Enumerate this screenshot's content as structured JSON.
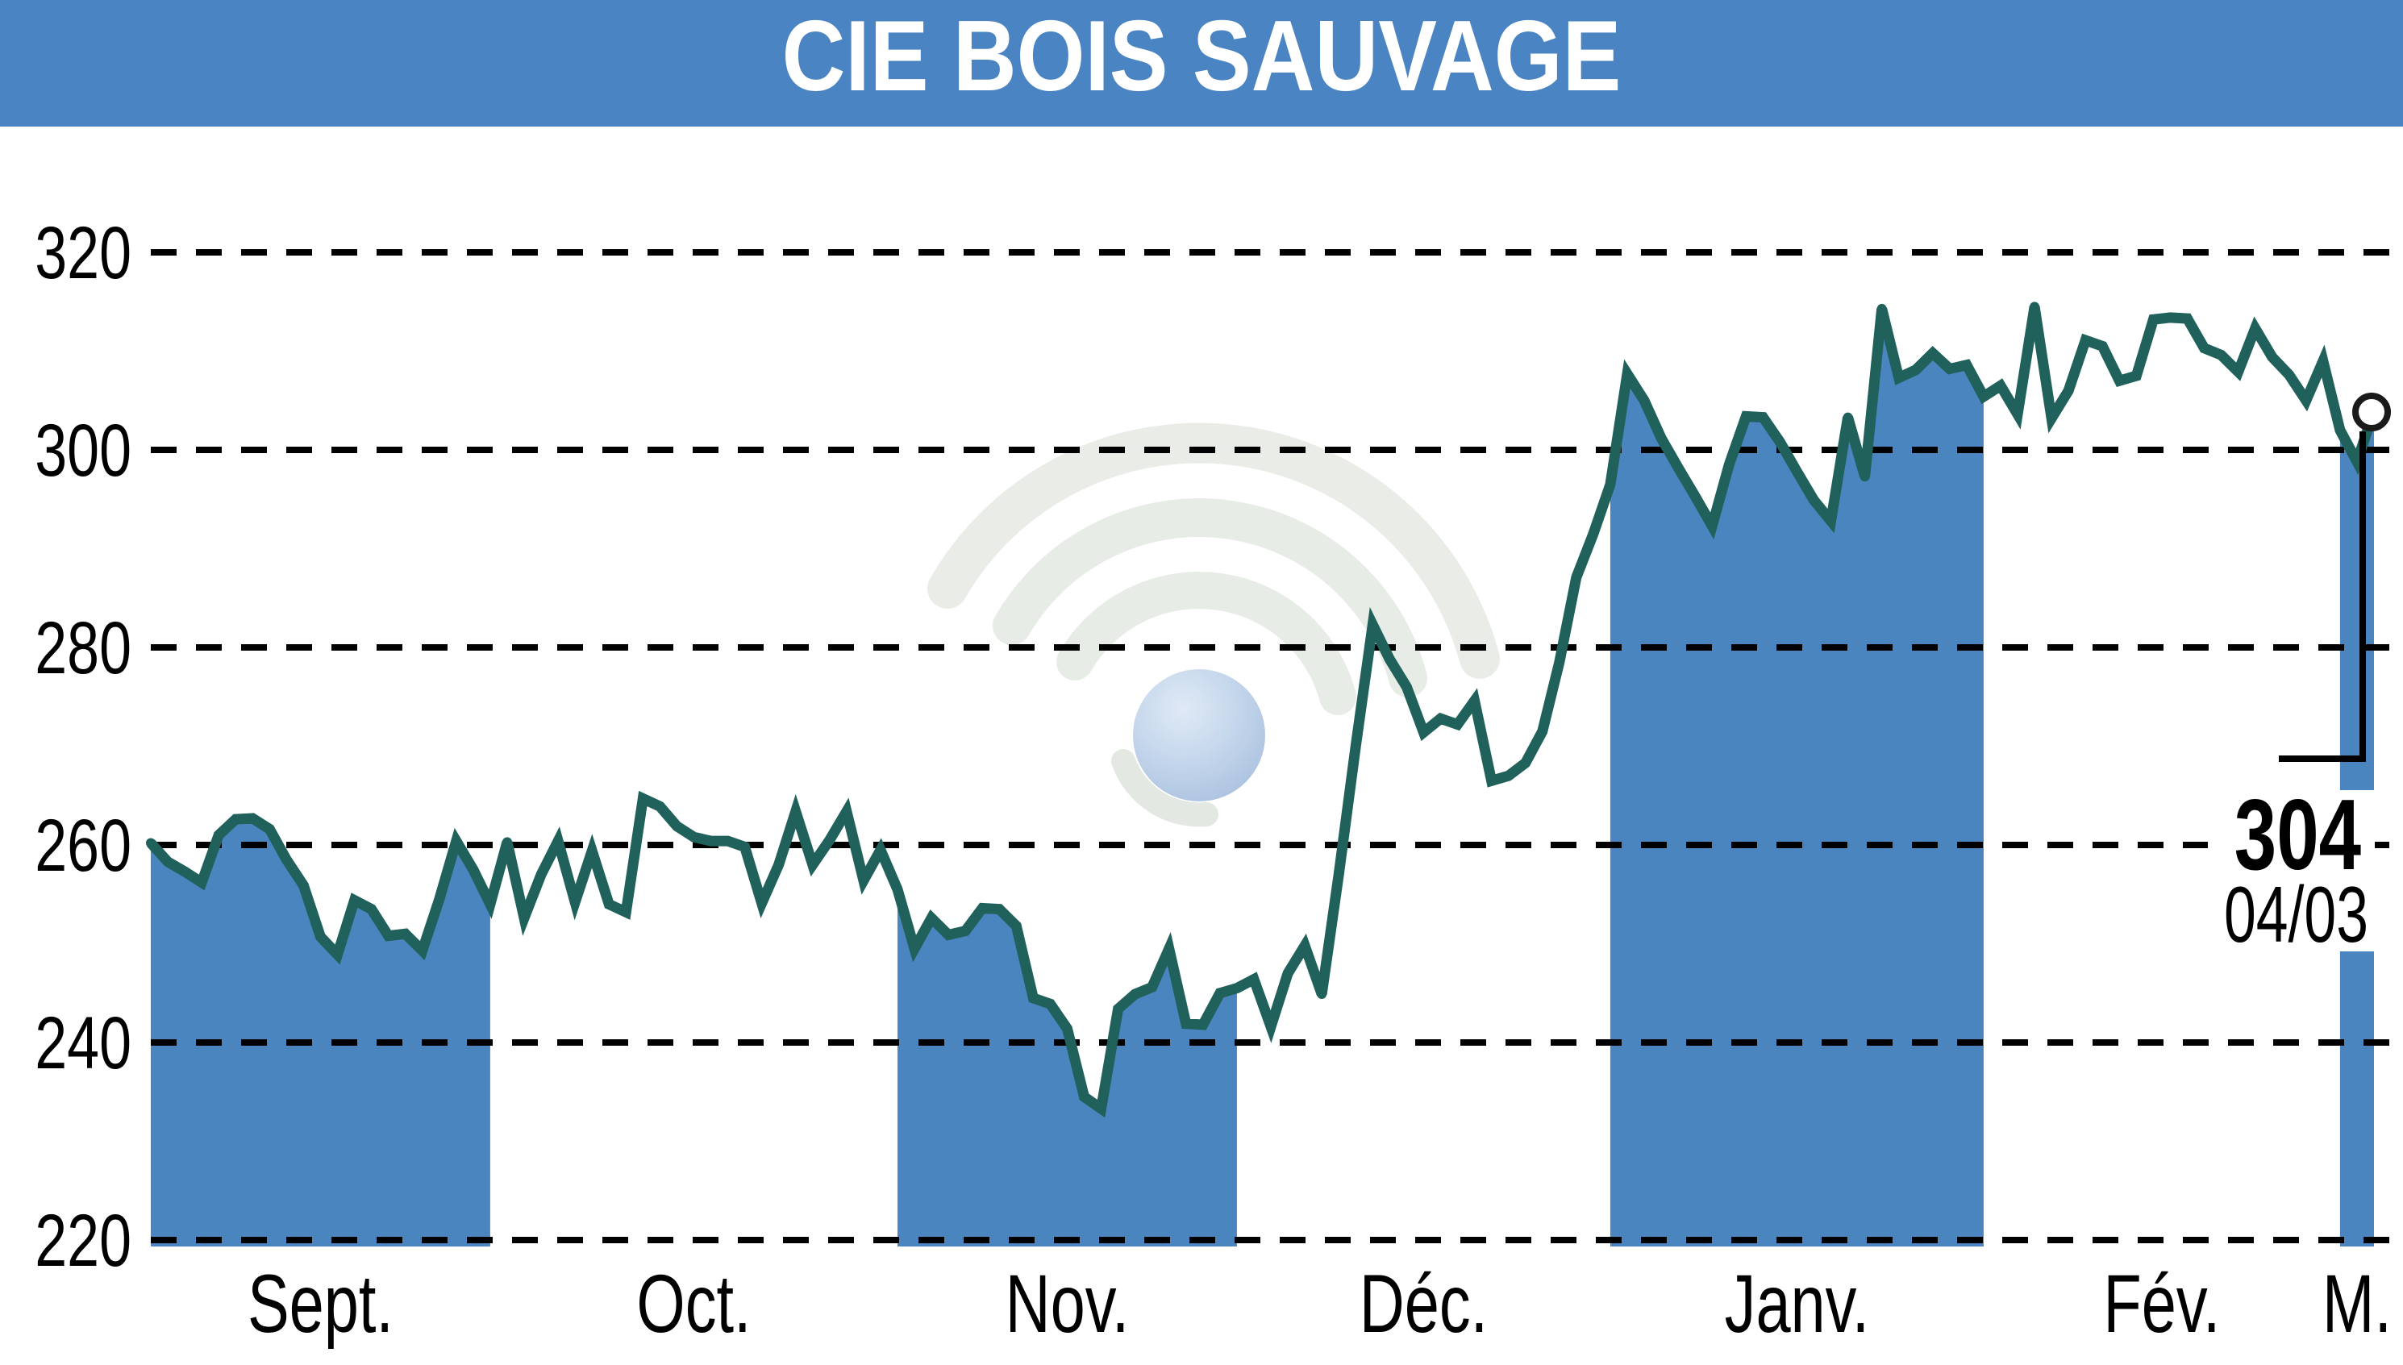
{
  "header": {
    "title": "CIE BOIS SAUVAGE",
    "bg_color": "#4a84c3"
  },
  "chart_data": {
    "type": "line",
    "title": "CIE BOIS SAUVAGE",
    "ylabel": "",
    "xlabel": "",
    "ylim": [
      220,
      320
    ],
    "yticks": [
      320,
      300,
      280,
      260,
      240,
      220
    ],
    "grid": "dashed-horizontal",
    "months": [
      {
        "label": "Sept.",
        "start_day": 0,
        "end_day": 20,
        "shaded": true
      },
      {
        "label": "Oct.",
        "start_day": 20,
        "end_day": 44,
        "shaded": false
      },
      {
        "label": "Nov.",
        "start_day": 44,
        "end_day": 64,
        "shaded": true
      },
      {
        "label": "Déc.",
        "start_day": 64,
        "end_day": 86,
        "shaded": false
      },
      {
        "label": "Janv.",
        "start_day": 86,
        "end_day": 108,
        "shaded": true
      },
      {
        "label": "Fév.",
        "start_day": 108,
        "end_day": 129,
        "shaded": false
      },
      {
        "label": "M.",
        "start_day": 129,
        "end_day": 131,
        "shaded": true
      }
    ],
    "values": [
      260.2,
      258.3,
      257.3,
      256.2,
      261.0,
      262.6,
      262.7,
      261.6,
      258.5,
      255.9,
      250.7,
      248.9,
      254.4,
      253.5,
      250.8,
      251.0,
      249.3,
      254.5,
      260.4,
      257.5,
      254.0,
      260.3,
      252.6,
      257.0,
      260.4,
      254.2,
      259.4,
      254.0,
      253.2,
      264.7,
      263.9,
      261.9,
      260.8,
      260.4,
      260.4,
      259.8,
      254.1,
      258.0,
      263.4,
      258.0,
      260.5,
      263.4,
      256.4,
      259.5,
      255.5,
      249.5,
      252.6,
      250.9,
      251.3,
      253.6,
      253.5,
      251.8,
      244.5,
      243.9,
      241.4,
      234.5,
      233.3,
      243.4,
      244.9,
      245.6,
      249.5,
      241.9,
      241.8,
      245.0,
      245.5,
      246.4,
      241.6,
      247.0,
      249.8,
      244.9,
      257.0,
      270.0,
      282.3,
      278.8,
      276.0,
      271.4,
      272.8,
      272.2,
      274.6,
      266.5,
      267.0,
      268.3,
      271.5,
      278.5,
      287.1,
      291.5,
      296.5,
      307.7,
      305.0,
      301.2,
      298.2,
      295.3,
      292.3,
      298.5,
      303.4,
      303.3,
      300.8,
      297.8,
      294.9,
      292.8,
      303.3,
      297.3,
      314.3,
      307.3,
      308.1,
      309.8,
      308.2,
      308.6,
      305.4,
      306.5,
      303.6,
      314.5,
      303.2,
      306.0,
      311.1,
      310.5,
      307.0,
      307.5,
      313.2,
      313.4,
      313.3,
      310.3,
      309.6,
      307.9,
      312.3,
      309.4,
      307.6,
      305.0,
      309.0,
      302.0,
      298.8,
      304.0
    ],
    "last_point": {
      "value": "304",
      "date_label": "04/03"
    }
  },
  "colors": {
    "header_bg": "#4a84c3",
    "month_fill": "#4b85c0",
    "line": "#20615b",
    "grid": "#000000",
    "marker_stroke": "#1a1a1a",
    "marker_fill": "#ffffff",
    "text": "#000000",
    "watermark_arc": "#e6ebe4",
    "watermark_ball": "#b3c9e6"
  },
  "watermark": {
    "description": "faded broadcast/wifi arcs logo with soft blue sphere"
  }
}
